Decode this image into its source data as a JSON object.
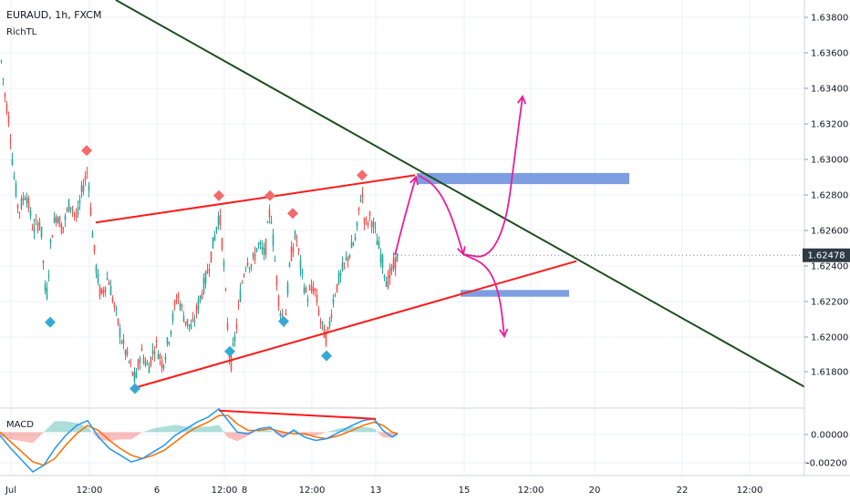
{
  "legend": {
    "title": "EURAUD, 1h, FXCM",
    "indicator": "RichTL"
  },
  "macd_label": "MACD",
  "current_price": "1.62478",
  "colors": {
    "up": "#26a69a",
    "down": "#ef5350",
    "trendline": "#ff1a1a",
    "resistance": "#1e4d1e",
    "arrow": "#e91e9a",
    "zone": "#7d9ee0",
    "pivot_high": "#f26b6b",
    "pivot_low": "#35a9d6",
    "macd_line": "#2196f3",
    "signal_line": "#ff6d00",
    "price_tag": "#2e3a46"
  },
  "chart_data": [
    {
      "type": "candlestick",
      "title": "EURAUD, 1h, FXCM",
      "indicator": "RichTL",
      "x_ticks": [
        "Jul",
        "12:00",
        "6",
        "12:00",
        "8",
        "12:00",
        "13",
        "15",
        "12:00",
        "20",
        "22",
        "12:00"
      ],
      "y_ticks": [
        "1.61800",
        "1.62000",
        "1.62200",
        "1.62400",
        "1.62600",
        "1.62800",
        "1.63000",
        "1.63200",
        "1.63400",
        "1.63600",
        "1.63800"
      ],
      "ylim": [
        1.6162,
        1.6392
      ],
      "last_price": 1.62478,
      "price_path": [
        [
          0,
          1.6362
        ],
        [
          5,
          1.6338
        ],
        [
          10,
          1.6322
        ],
        [
          14,
          1.6296
        ],
        [
          20,
          1.6272
        ],
        [
          28,
          1.6284
        ],
        [
          36,
          1.6262
        ],
        [
          44,
          1.6268
        ],
        [
          50,
          1.622
        ],
        [
          56,
          1.626
        ],
        [
          62,
          1.6272
        ],
        [
          68,
          1.6262
        ],
        [
          76,
          1.6278
        ],
        [
          84,
          1.6268
        ],
        [
          90,
          1.6286
        ],
        [
          96,
          1.6296
        ],
        [
          100,
          1.6266
        ],
        [
          104,
          1.6244
        ],
        [
          110,
          1.6224
        ],
        [
          118,
          1.6236
        ],
        [
          126,
          1.6216
        ],
        [
          134,
          1.6198
        ],
        [
          142,
          1.6186
        ],
        [
          148,
          1.6176
        ],
        [
          154,
          1.6194
        ],
        [
          162,
          1.6184
        ],
        [
          170,
          1.6198
        ],
        [
          178,
          1.6186
        ],
        [
          186,
          1.6204
        ],
        [
          194,
          1.6226
        ],
        [
          202,
          1.6212
        ],
        [
          210,
          1.6206
        ],
        [
          218,
          1.6222
        ],
        [
          226,
          1.6236
        ],
        [
          234,
          1.6256
        ],
        [
          240,
          1.6272
        ],
        [
          244,
          1.625
        ],
        [
          248,
          1.6216
        ],
        [
          252,
          1.6184
        ],
        [
          258,
          1.6204
        ],
        [
          264,
          1.623
        ],
        [
          270,
          1.6246
        ],
        [
          276,
          1.6242
        ],
        [
          282,
          1.6254
        ],
        [
          290,
          1.6248
        ],
        [
          296,
          1.6276
        ],
        [
          300,
          1.625
        ],
        [
          306,
          1.6218
        ],
        [
          312,
          1.621
        ],
        [
          318,
          1.6246
        ],
        [
          324,
          1.626
        ],
        [
          330,
          1.6238
        ],
        [
          336,
          1.6224
        ],
        [
          344,
          1.623
        ],
        [
          352,
          1.6208
        ],
        [
          358,
          1.62
        ],
        [
          366,
          1.6226
        ],
        [
          374,
          1.6238
        ],
        [
          382,
          1.6248
        ],
        [
          390,
          1.6258
        ],
        [
          396,
          1.6286
        ],
        [
          400,
          1.6264
        ],
        [
          406,
          1.627
        ],
        [
          412,
          1.6258
        ],
        [
          418,
          1.6246
        ],
        [
          424,
          1.6232
        ],
        [
          430,
          1.624
        ],
        [
          436,
          1.62478
        ]
      ],
      "trendlines": [
        {
          "name": "upper-channel",
          "from": [
            105,
            1.62663
          ],
          "to": [
            455,
            1.6293
          ]
        },
        {
          "name": "lower-channel",
          "from": [
            148,
            1.6173
          ],
          "to": [
            632,
            1.62445
          ]
        },
        {
          "name": "descending-resistance",
          "from": [
            127,
            1.6392
          ],
          "to": [
            882,
            1.61735
          ]
        }
      ],
      "zones": [
        {
          "name": "upper-target-zone",
          "x0": 457,
          "x1": 690,
          "y0": 1.6288,
          "y1": 1.62943
        },
        {
          "name": "lower-target-zone",
          "x0": 505,
          "x1": 624,
          "y0": 1.62244,
          "y1": 1.62282
        }
      ],
      "pivot_highs": [
        [
          95,
          1.6307
        ],
        [
          240,
          1.62815
        ],
        [
          296,
          1.62815
        ],
        [
          321,
          1.62715
        ],
        [
          397,
          1.6293
        ]
      ],
      "pivot_lows": [
        [
          55,
          1.621
        ],
        [
          148,
          1.61725
        ],
        [
          252,
          1.61935
        ],
        [
          311,
          1.62105
        ],
        [
          358,
          1.6191
        ]
      ],
      "projection_arrows": [
        {
          "name": "arrow-up-to-zone",
          "points": [
            [
              433,
              1.62478
            ],
            [
              444,
              1.627
            ],
            [
              456,
              1.6292
            ]
          ],
          "head": "end"
        },
        {
          "name": "arrow-zone-to-retest",
          "points": [
            [
              459,
              1.6293
            ],
            [
              478,
              1.6287
            ],
            [
              494,
              1.6272
            ],
            [
              508,
              1.62484
            ]
          ],
          "head": "end"
        },
        {
          "name": "arrow-bullish-breakout",
          "points": [
            [
              508,
              1.62484
            ],
            [
              535,
              1.6246
            ],
            [
              555,
              1.62655
            ],
            [
              564,
              1.63025
            ],
            [
              573,
              1.63375
            ]
          ],
          "head": "end"
        },
        {
          "name": "arrow-bearish-breakdown",
          "points": [
            [
              508,
              1.62484
            ],
            [
              535,
              1.6242
            ],
            [
              548,
              1.62255
            ],
            [
              553,
              1.6202
            ]
          ],
          "head": "end"
        }
      ]
    },
    {
      "type": "line",
      "title": "MACD",
      "y_ticks": [
        "0.00000",
        "-0.00200"
      ],
      "ylim": [
        -0.00262,
        0.00145
      ],
      "series": [
        {
          "role": "macd",
          "points": [
            [
              0,
              -0.0002
            ],
            [
              12,
              -0.001
            ],
            [
              24,
              -0.0017
            ],
            [
              36,
              -0.0024
            ],
            [
              48,
              -0.002
            ],
            [
              60,
              -0.001
            ],
            [
              72,
              -0.0002
            ],
            [
              84,
              0.0004
            ],
            [
              96,
              0.0007
            ],
            [
              108,
              -0.0003
            ],
            [
              120,
              -0.001
            ],
            [
              132,
              -0.0014
            ],
            [
              144,
              -0.0018
            ],
            [
              156,
              -0.0016
            ],
            [
              168,
              -0.0012
            ],
            [
              180,
              -0.0008
            ],
            [
              192,
              -0.0002
            ],
            [
              204,
              0.0002
            ],
            [
              216,
              0.0006
            ],
            [
              228,
              0.0009
            ],
            [
              240,
              0.0014
            ],
            [
              250,
              0.0007
            ],
            [
              260,
              0.0
            ],
            [
              272,
              -0.0001
            ],
            [
              284,
              0.0002
            ],
            [
              296,
              0.0003
            ],
            [
              310,
              -0.0003
            ],
            [
              322,
              0.0001
            ],
            [
              334,
              -0.0003
            ],
            [
              346,
              -0.0005
            ],
            [
              358,
              -0.0004
            ],
            [
              372,
              0.0
            ],
            [
              386,
              0.0004
            ],
            [
              398,
              0.0007
            ],
            [
              410,
              0.0008
            ],
            [
              420,
              0.0001
            ],
            [
              430,
              -0.0003
            ],
            [
              436,
              -0.0001
            ]
          ]
        },
        {
          "role": "signal",
          "points": [
            [
              0,
              0.0
            ],
            [
              12,
              -0.0006
            ],
            [
              24,
              -0.0012
            ],
            [
              36,
              -0.0018
            ],
            [
              48,
              -0.002
            ],
            [
              60,
              -0.0016
            ],
            [
              72,
              -0.0008
            ],
            [
              84,
              -0.0001
            ],
            [
              96,
              0.0004
            ],
            [
              108,
              0.0001
            ],
            [
              120,
              -0.0005
            ],
            [
              132,
              -0.001
            ],
            [
              144,
              -0.0014
            ],
            [
              156,
              -0.0016
            ],
            [
              168,
              -0.0014
            ],
            [
              180,
              -0.0011
            ],
            [
              192,
              -0.0006
            ],
            [
              204,
              -0.0001
            ],
            [
              216,
              0.0003
            ],
            [
              228,
              0.0006
            ],
            [
              240,
              0.001
            ],
            [
              250,
              0.001
            ],
            [
              260,
              0.0005
            ],
            [
              272,
              0.0001
            ],
            [
              284,
              0.0001
            ],
            [
              296,
              0.0002
            ],
            [
              310,
              0.0
            ],
            [
              322,
              -0.0001
            ],
            [
              334,
              -0.0001
            ],
            [
              346,
              -0.0003
            ],
            [
              358,
              -0.0004
            ],
            [
              372,
              -0.0002
            ],
            [
              386,
              0.0001
            ],
            [
              398,
              0.0004
            ],
            [
              410,
              0.0006
            ],
            [
              420,
              0.0004
            ],
            [
              430,
              0.0
            ],
            [
              436,
              -0.0001
            ]
          ]
        }
      ],
      "divergence_line": {
        "from": [
          240,
          0.0013
        ],
        "to": [
          412,
          0.0008
        ]
      }
    }
  ]
}
